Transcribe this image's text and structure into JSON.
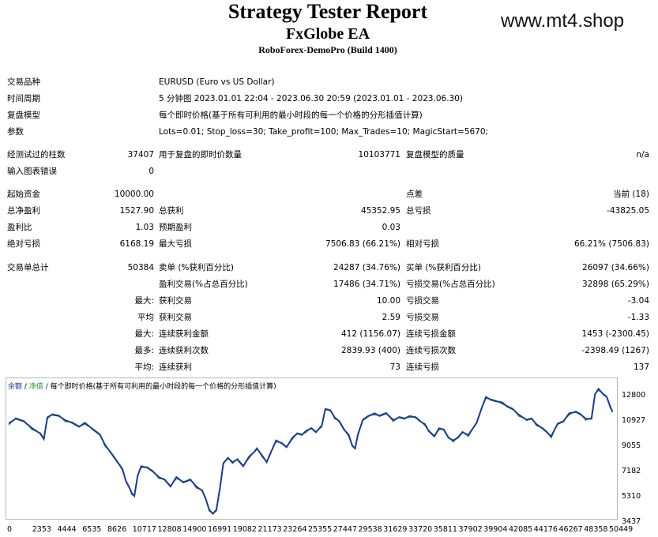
{
  "header": {
    "title": "Strategy Tester Report",
    "subtitle": "FxGlobe EA",
    "server": "RoboForex-DemoPro (Build 1400)",
    "watermark": "www.mt4.shop"
  },
  "info": {
    "symbol_label": "交易品种",
    "symbol_value": "EURUSD (Euro vs US Dollar)",
    "period_label": "时间周期",
    "period_value": "5 分钟图 2023.01.01 22:04 - 2023.06.30 20:59 (2023.01.01 - 2023.06.30)",
    "model_label": "复盘模型",
    "model_value": "每个即时价格(基于所有可利用的最小时段的每一个价格的分形插值计算)",
    "params_label": "参数",
    "params_value": "Lots=0.01; Stop_loss=30; Take_profit=100; Max_Trades=10; MagicStart=5670;"
  },
  "stats": {
    "bars_label": "经测试过的柱数",
    "bars_value": "37407",
    "ticks_label": "用于复盘的即时价数量",
    "ticks_value": "10103771",
    "quality_label": "复盘模型的质量",
    "quality_value": "n/a",
    "errors_label": "输入图表错误",
    "errors_value": "0",
    "deposit_label": "起始资金",
    "deposit_value": "10000.00",
    "spread_label": "点差",
    "spread_value": "当前 (18)",
    "net_label": "总净盈利",
    "net_value": "1527.90",
    "gross_profit_label": "总获利",
    "gross_profit_value": "45352.95",
    "gross_loss_label": "总亏损",
    "gross_loss_value": "-43825.05",
    "pf_label": "盈利比",
    "pf_value": "1.03",
    "payoff_label": "预期盈利",
    "payoff_value": "0.03",
    "abs_dd_label": "绝对亏损",
    "abs_dd_value": "6168.19",
    "max_dd_label": "最大亏损",
    "max_dd_value": "7506.83 (66.21%)",
    "rel_dd_label": "相对亏损",
    "rel_dd_value": "66.21% (7506.83)",
    "trades_label": "交易单总计",
    "trades_value": "50384",
    "short_label": "卖单 (%获利百分比)",
    "short_value": "24287 (34.76%)",
    "long_label": "买单 (%获利百分比)",
    "long_value": "26097 (34.66%)",
    "profit_trades_label": "盈利交易(%占总百分比)",
    "profit_trades_value": "17486 (34.71%)",
    "loss_trades_label": "亏损交易(%占总百分比)",
    "loss_trades_value": "32898 (65.29%)",
    "largest_prefix": "最大:",
    "largest_profit_label": "获利交易",
    "largest_profit_value": "10.00",
    "largest_loss_label": "亏损交易",
    "largest_loss_value": "-3.04",
    "average_prefix": "平均",
    "avg_profit_label": "获利交易",
    "avg_profit_value": "2.59",
    "avg_loss_label": "亏损交易",
    "avg_loss_value": "-1.33",
    "max_prefix": "最大:",
    "cons_wins_amt_label": "连续获利金额",
    "cons_wins_amt_value": "412 (1156.07)",
    "cons_loss_amt_label": "连续亏损金额",
    "cons_loss_amt_value": "1453 (-2300.45)",
    "most_prefix": "最多:",
    "cons_wins_cnt_label": "连续获利次数",
    "cons_wins_cnt_value": "2839.93 (400)",
    "cons_loss_cnt_label": "连续亏损次数",
    "cons_loss_cnt_value": "-2398.49 (1267)",
    "avg2_prefix": "平均:",
    "avg_cons_wins_label": "连续获利",
    "avg_cons_wins_value": "73",
    "avg_cons_loss_label": "连续亏损",
    "avg_cons_loss_value": "137"
  },
  "chart_data": {
    "type": "line",
    "legend": {
      "balance": "余额",
      "sep1": " / ",
      "equity": "净值",
      "sep2": " / ",
      "model": "每个即时价格(基于所有可利用的最小时段的每一个价格的分形插值计算)"
    },
    "x_ticks": [
      "0",
      "2353",
      "4444",
      "6535",
      "8626",
      "10717",
      "12808",
      "14900",
      "16991",
      "19082",
      "21173",
      "23264",
      "25355",
      "27447",
      "29538",
      "31629",
      "33720",
      "35811",
      "37902",
      "39904",
      "42085",
      "44176",
      "46267",
      "48358",
      "50449"
    ],
    "y_ticks": [
      "12800",
      "10927",
      "9055",
      "7182",
      "5310",
      "3437"
    ],
    "ylim": [
      3437,
      13100
    ],
    "xlim": [
      0,
      51600
    ],
    "balance": [
      [
        0,
        10350
      ],
      [
        600,
        10700
      ],
      [
        1300,
        10500
      ],
      [
        2000,
        10000
      ],
      [
        2700,
        9600
      ],
      [
        3000,
        9200
      ],
      [
        3300,
        10800
      ],
      [
        3700,
        11000
      ],
      [
        4300,
        10900
      ],
      [
        4800,
        10600
      ],
      [
        5400,
        10400
      ],
      [
        6000,
        10100
      ],
      [
        6500,
        10400
      ],
      [
        7200,
        9900
      ],
      [
        7800,
        9500
      ],
      [
        8200,
        8800
      ],
      [
        8700,
        8200
      ],
      [
        9200,
        7600
      ],
      [
        9700,
        7000
      ],
      [
        10000,
        6100
      ],
      [
        10300,
        5600
      ],
      [
        10500,
        5200
      ],
      [
        10717,
        5000
      ],
      [
        11000,
        6500
      ],
      [
        11300,
        7200
      ],
      [
        11800,
        7100
      ],
      [
        12300,
        6800
      ],
      [
        12808,
        6400
      ],
      [
        13300,
        6200
      ],
      [
        13800,
        5700
      ],
      [
        14300,
        6400
      ],
      [
        14900,
        6000
      ],
      [
        15500,
        6200
      ],
      [
        16000,
        5700
      ],
      [
        16500,
        5400
      ],
      [
        16800,
        4800
      ],
      [
        17100,
        4000
      ],
      [
        17400,
        3700
      ],
      [
        17700,
        3950
      ],
      [
        18000,
        5500
      ],
      [
        18300,
        7400
      ],
      [
        18700,
        7800
      ],
      [
        19082,
        7500
      ],
      [
        19500,
        7700
      ],
      [
        20000,
        7200
      ],
      [
        20500,
        7900
      ],
      [
        21000,
        8300
      ],
      [
        21173,
        8500
      ],
      [
        21600,
        8000
      ],
      [
        22000,
        7500
      ],
      [
        22400,
        8300
      ],
      [
        22800,
        9100
      ],
      [
        23264,
        8900
      ],
      [
        23700,
        8600
      ],
      [
        24200,
        9300
      ],
      [
        24600,
        9600
      ],
      [
        25000,
        9500
      ],
      [
        25355,
        9800
      ],
      [
        25800,
        10000
      ],
      [
        26200,
        9700
      ],
      [
        26700,
        10200
      ],
      [
        27000,
        11400
      ],
      [
        27447,
        11300
      ],
      [
        27800,
        10800
      ],
      [
        28200,
        10500
      ],
      [
        28600,
        9900
      ],
      [
        29000,
        9500
      ],
      [
        29300,
        8700
      ],
      [
        29538,
        8500
      ],
      [
        29800,
        9600
      ],
      [
        30200,
        10600
      ],
      [
        30700,
        10900
      ],
      [
        31200,
        11100
      ],
      [
        31629,
        10900
      ],
      [
        32200,
        11100
      ],
      [
        32800,
        10600
      ],
      [
        33300,
        10800
      ],
      [
        33720,
        10700
      ],
      [
        34200,
        10900
      ],
      [
        34700,
        10800
      ],
      [
        35100,
        10500
      ],
      [
        35500,
        10300
      ],
      [
        35811,
        9800
      ],
      [
        36300,
        9400
      ],
      [
        36700,
        10000
      ],
      [
        37100,
        9900
      ],
      [
        37500,
        9300
      ],
      [
        37902,
        9100
      ],
      [
        38300,
        9300
      ],
      [
        38700,
        9700
      ],
      [
        39200,
        9500
      ],
      [
        39904,
        10400
      ],
      [
        40300,
        11400
      ],
      [
        40700,
        12300
      ],
      [
        41100,
        12100
      ],
      [
        41500,
        12000
      ],
      [
        42085,
        11900
      ],
      [
        42500,
        11600
      ],
      [
        43000,
        11400
      ],
      [
        43500,
        11000
      ],
      [
        44176,
        10600
      ],
      [
        44600,
        10700
      ],
      [
        45000,
        10300
      ],
      [
        45500,
        10000
      ],
      [
        45900,
        9700
      ],
      [
        46267,
        9400
      ],
      [
        46800,
        10300
      ],
      [
        47300,
        10500
      ],
      [
        47800,
        11100
      ],
      [
        48358,
        11200
      ],
      [
        48800,
        11000
      ],
      [
        49200,
        10700
      ],
      [
        49700,
        10700
      ],
      [
        50000,
        12500
      ],
      [
        50300,
        12900
      ],
      [
        50700,
        12500
      ],
      [
        51000,
        12300
      ],
      [
        51300,
        11600
      ],
      [
        51500,
        11200
      ]
    ]
  }
}
